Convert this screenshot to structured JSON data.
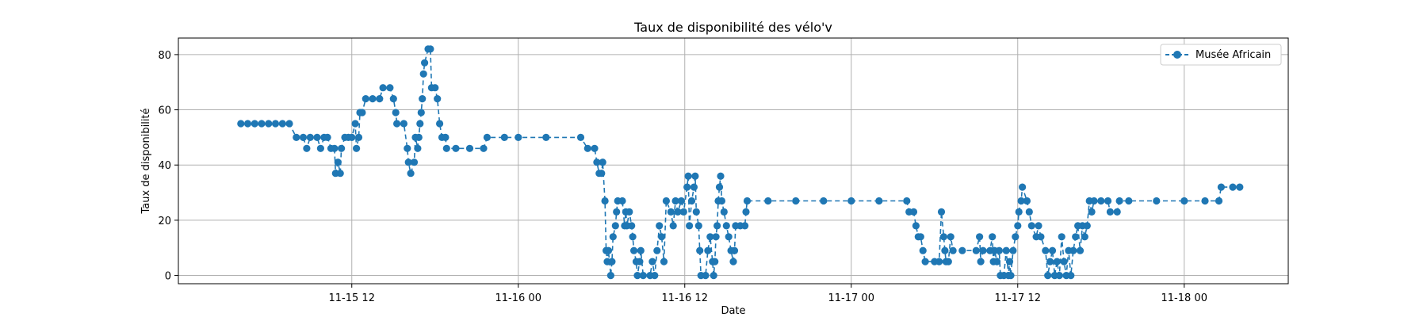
{
  "chart_data": {
    "type": "line",
    "title": "Taux de disponibilité des vélo'v",
    "xlabel": "Date",
    "ylabel": "Taux de disponibilité",
    "xlim": [
      "2018-11-14 23:30",
      "2018-11-18 07:30"
    ],
    "ylim": [
      -3,
      86
    ],
    "x_ticks": [
      "11-15 12",
      "11-16 00",
      "11-16 12",
      "11-17 00",
      "11-17 12",
      "11-18 00"
    ],
    "x_tick_positions": [
      "2018-11-15 12:00",
      "2018-11-16 00:00",
      "2018-11-16 12:00",
      "2018-11-17 00:00",
      "2018-11-17 12:00",
      "2018-11-18 00:00"
    ],
    "y_ticks": [
      0,
      20,
      40,
      60,
      80
    ],
    "grid": true,
    "legend": "top-right",
    "series": [
      {
        "name": "Musée Africain",
        "color": "#1f77b4",
        "marker": "circle",
        "linestyle": "dashed",
        "points": [
          [
            "2018-11-15 04:00",
            55
          ],
          [
            "2018-11-15 04:30",
            55
          ],
          [
            "2018-11-15 05:00",
            55
          ],
          [
            "2018-11-15 05:30",
            55
          ],
          [
            "2018-11-15 06:00",
            55
          ],
          [
            "2018-11-15 06:30",
            55
          ],
          [
            "2018-11-15 07:00",
            55
          ],
          [
            "2018-11-15 07:30",
            55
          ],
          [
            "2018-11-15 08:00",
            50
          ],
          [
            "2018-11-15 08:30",
            50
          ],
          [
            "2018-11-15 08:45",
            46
          ],
          [
            "2018-11-15 09:00",
            50
          ],
          [
            "2018-11-15 09:30",
            50
          ],
          [
            "2018-11-15 09:45",
            46
          ],
          [
            "2018-11-15 10:00",
            50
          ],
          [
            "2018-11-15 10:15",
            50
          ],
          [
            "2018-11-15 10:30",
            46
          ],
          [
            "2018-11-15 10:45",
            46
          ],
          [
            "2018-11-15 10:50",
            37
          ],
          [
            "2018-11-15 11:00",
            41
          ],
          [
            "2018-11-15 11:10",
            37
          ],
          [
            "2018-11-15 11:15",
            46
          ],
          [
            "2018-11-15 11:30",
            50
          ],
          [
            "2018-11-15 11:45",
            50
          ],
          [
            "2018-11-15 12:00",
            50
          ],
          [
            "2018-11-15 12:15",
            55
          ],
          [
            "2018-11-15 12:20",
            46
          ],
          [
            "2018-11-15 12:30",
            50
          ],
          [
            "2018-11-15 12:35",
            59
          ],
          [
            "2018-11-15 12:45",
            59
          ],
          [
            "2018-11-15 13:00",
            64
          ],
          [
            "2018-11-15 13:30",
            64
          ],
          [
            "2018-11-15 14:00",
            64
          ],
          [
            "2018-11-15 14:15",
            68
          ],
          [
            "2018-11-15 14:45",
            68
          ],
          [
            "2018-11-15 15:00",
            64
          ],
          [
            "2018-11-15 15:10",
            59
          ],
          [
            "2018-11-15 15:15",
            55
          ],
          [
            "2018-11-15 15:45",
            55
          ],
          [
            "2018-11-15 16:00",
            46
          ],
          [
            "2018-11-15 16:05",
            41
          ],
          [
            "2018-11-15 16:15",
            37
          ],
          [
            "2018-11-15 16:30",
            41
          ],
          [
            "2018-11-15 16:35",
            50
          ],
          [
            "2018-11-15 16:45",
            46
          ],
          [
            "2018-11-15 16:50",
            50
          ],
          [
            "2018-11-15 16:55",
            55
          ],
          [
            "2018-11-15 17:00",
            59
          ],
          [
            "2018-11-15 17:05",
            64
          ],
          [
            "2018-11-15 17:10",
            73
          ],
          [
            "2018-11-15 17:15",
            77
          ],
          [
            "2018-11-15 17:30",
            82
          ],
          [
            "2018-11-15 17:40",
            82
          ],
          [
            "2018-11-15 17:45",
            68
          ],
          [
            "2018-11-15 18:00",
            68
          ],
          [
            "2018-11-15 18:10",
            64
          ],
          [
            "2018-11-15 18:20",
            55
          ],
          [
            "2018-11-15 18:30",
            50
          ],
          [
            "2018-11-15 18:45",
            50
          ],
          [
            "2018-11-15 18:50",
            46
          ],
          [
            "2018-11-15 19:30",
            46
          ],
          [
            "2018-11-15 20:30",
            46
          ],
          [
            "2018-11-15 21:30",
            46
          ],
          [
            "2018-11-15 21:45",
            50
          ],
          [
            "2018-11-15 23:00",
            50
          ],
          [
            "2018-11-16 00:00",
            50
          ],
          [
            "2018-11-16 02:00",
            50
          ],
          [
            "2018-11-16 04:30",
            50
          ],
          [
            "2018-11-16 05:00",
            46
          ],
          [
            "2018-11-16 05:30",
            46
          ],
          [
            "2018-11-16 05:40",
            41
          ],
          [
            "2018-11-16 05:50",
            37
          ],
          [
            "2018-11-16 06:00",
            37
          ],
          [
            "2018-11-16 06:05",
            41
          ],
          [
            "2018-11-16 06:15",
            27
          ],
          [
            "2018-11-16 06:20",
            9
          ],
          [
            "2018-11-16 06:25",
            5
          ],
          [
            "2018-11-16 06:30",
            9
          ],
          [
            "2018-11-16 06:40",
            0
          ],
          [
            "2018-11-16 06:45",
            5
          ],
          [
            "2018-11-16 06:50",
            14
          ],
          [
            "2018-11-16 07:00",
            18
          ],
          [
            "2018-11-16 07:05",
            23
          ],
          [
            "2018-11-16 07:10",
            27
          ],
          [
            "2018-11-16 07:30",
            27
          ],
          [
            "2018-11-16 07:40",
            18
          ],
          [
            "2018-11-16 07:45",
            23
          ],
          [
            "2018-11-16 07:50",
            18
          ],
          [
            "2018-11-16 08:00",
            23
          ],
          [
            "2018-11-16 08:10",
            18
          ],
          [
            "2018-11-16 08:15",
            14
          ],
          [
            "2018-11-16 08:20",
            9
          ],
          [
            "2018-11-16 08:30",
            5
          ],
          [
            "2018-11-16 08:35",
            0
          ],
          [
            "2018-11-16 08:45",
            5
          ],
          [
            "2018-11-16 08:50",
            9
          ],
          [
            "2018-11-16 09:00",
            0
          ],
          [
            "2018-11-16 09:30",
            0
          ],
          [
            "2018-11-16 09:40",
            5
          ],
          [
            "2018-11-16 09:50",
            0
          ],
          [
            "2018-11-16 10:00",
            9
          ],
          [
            "2018-11-16 10:10",
            18
          ],
          [
            "2018-11-16 10:20",
            14
          ],
          [
            "2018-11-16 10:30",
            5
          ],
          [
            "2018-11-16 10:40",
            27
          ],
          [
            "2018-11-16 11:00",
            23
          ],
          [
            "2018-11-16 11:10",
            18
          ],
          [
            "2018-11-16 11:20",
            27
          ],
          [
            "2018-11-16 11:30",
            23
          ],
          [
            "2018-11-16 11:45",
            27
          ],
          [
            "2018-11-16 11:55",
            23
          ],
          [
            "2018-11-16 12:10",
            32
          ],
          [
            "2018-11-16 12:15",
            36
          ],
          [
            "2018-11-16 12:20",
            18
          ],
          [
            "2018-11-16 12:30",
            27
          ],
          [
            "2018-11-16 12:40",
            32
          ],
          [
            "2018-11-16 12:45",
            36
          ],
          [
            "2018-11-16 12:50",
            23
          ],
          [
            "2018-11-16 13:00",
            18
          ],
          [
            "2018-11-16 13:05",
            9
          ],
          [
            "2018-11-16 13:10",
            0
          ],
          [
            "2018-11-16 13:30",
            0
          ],
          [
            "2018-11-16 13:40",
            9
          ],
          [
            "2018-11-16 13:50",
            14
          ],
          [
            "2018-11-16 14:00",
            5
          ],
          [
            "2018-11-16 14:05",
            0
          ],
          [
            "2018-11-16 14:10",
            5
          ],
          [
            "2018-11-16 14:15",
            14
          ],
          [
            "2018-11-16 14:20",
            18
          ],
          [
            "2018-11-16 14:25",
            27
          ],
          [
            "2018-11-16 14:30",
            32
          ],
          [
            "2018-11-16 14:35",
            36
          ],
          [
            "2018-11-16 14:40",
            27
          ],
          [
            "2018-11-16 14:50",
            23
          ],
          [
            "2018-11-16 15:00",
            18
          ],
          [
            "2018-11-16 15:10",
            14
          ],
          [
            "2018-11-16 15:20",
            9
          ],
          [
            "2018-11-16 15:30",
            5
          ],
          [
            "2018-11-16 15:35",
            9
          ],
          [
            "2018-11-16 15:40",
            18
          ],
          [
            "2018-11-16 16:00",
            18
          ],
          [
            "2018-11-16 16:20",
            18
          ],
          [
            "2018-11-16 16:25",
            23
          ],
          [
            "2018-11-16 16:30",
            27
          ],
          [
            "2018-11-16 18:00",
            27
          ],
          [
            "2018-11-16 20:00",
            27
          ],
          [
            "2018-11-16 22:00",
            27
          ],
          [
            "2018-11-17 00:00",
            27
          ],
          [
            "2018-11-17 02:00",
            27
          ],
          [
            "2018-11-17 04:00",
            27
          ],
          [
            "2018-11-17 04:10",
            23
          ],
          [
            "2018-11-17 04:30",
            23
          ],
          [
            "2018-11-17 04:40",
            18
          ],
          [
            "2018-11-17 04:50",
            14
          ],
          [
            "2018-11-17 05:00",
            14
          ],
          [
            "2018-11-17 05:10",
            9
          ],
          [
            "2018-11-17 05:20",
            5
          ],
          [
            "2018-11-17 06:00",
            5
          ],
          [
            "2018-11-17 06:20",
            5
          ],
          [
            "2018-11-17 06:30",
            23
          ],
          [
            "2018-11-17 06:40",
            14
          ],
          [
            "2018-11-17 06:45",
            9
          ],
          [
            "2018-11-17 06:50",
            5
          ],
          [
            "2018-11-17 07:00",
            5
          ],
          [
            "2018-11-17 07:10",
            14
          ],
          [
            "2018-11-17 07:20",
            9
          ],
          [
            "2018-11-17 08:00",
            9
          ],
          [
            "2018-11-17 09:00",
            9
          ],
          [
            "2018-11-17 09:15",
            14
          ],
          [
            "2018-11-17 09:20",
            5
          ],
          [
            "2018-11-17 09:30",
            9
          ],
          [
            "2018-11-17 10:00",
            9
          ],
          [
            "2018-11-17 10:10",
            14
          ],
          [
            "2018-11-17 10:15",
            5
          ],
          [
            "2018-11-17 10:20",
            9
          ],
          [
            "2018-11-17 10:30",
            5
          ],
          [
            "2018-11-17 10:40",
            9
          ],
          [
            "2018-11-17 10:45",
            0
          ],
          [
            "2018-11-17 11:00",
            0
          ],
          [
            "2018-11-17 11:10",
            9
          ],
          [
            "2018-11-17 11:20",
            0
          ],
          [
            "2018-11-17 11:25",
            5
          ],
          [
            "2018-11-17 11:30",
            0
          ],
          [
            "2018-11-17 11:40",
            9
          ],
          [
            "2018-11-17 11:50",
            14
          ],
          [
            "2018-11-17 12:00",
            18
          ],
          [
            "2018-11-17 12:05",
            23
          ],
          [
            "2018-11-17 12:15",
            27
          ],
          [
            "2018-11-17 12:20",
            32
          ],
          [
            "2018-11-17 12:40",
            27
          ],
          [
            "2018-11-17 12:50",
            23
          ],
          [
            "2018-11-17 13:00",
            18
          ],
          [
            "2018-11-17 13:20",
            14
          ],
          [
            "2018-11-17 13:30",
            18
          ],
          [
            "2018-11-17 13:40",
            14
          ],
          [
            "2018-11-17 14:00",
            9
          ],
          [
            "2018-11-17 14:10",
            0
          ],
          [
            "2018-11-17 14:20",
            5
          ],
          [
            "2018-11-17 14:30",
            9
          ],
          [
            "2018-11-17 14:40",
            0
          ],
          [
            "2018-11-17 14:50",
            5
          ],
          [
            "2018-11-17 15:00",
            0
          ],
          [
            "2018-11-17 15:10",
            14
          ],
          [
            "2018-11-17 15:20",
            5
          ],
          [
            "2018-11-17 15:30",
            0
          ],
          [
            "2018-11-17 15:40",
            9
          ],
          [
            "2018-11-17 15:50",
            0
          ],
          [
            "2018-11-17 16:00",
            9
          ],
          [
            "2018-11-17 16:10",
            14
          ],
          [
            "2018-11-17 16:20",
            18
          ],
          [
            "2018-11-17 16:30",
            9
          ],
          [
            "2018-11-17 16:40",
            18
          ],
          [
            "2018-11-17 16:50",
            14
          ],
          [
            "2018-11-17 17:00",
            18
          ],
          [
            "2018-11-17 17:10",
            27
          ],
          [
            "2018-11-17 17:20",
            23
          ],
          [
            "2018-11-17 17:30",
            27
          ],
          [
            "2018-11-17 18:00",
            27
          ],
          [
            "2018-11-17 18:30",
            27
          ],
          [
            "2018-11-17 18:40",
            23
          ],
          [
            "2018-11-17 19:10",
            23
          ],
          [
            "2018-11-17 19:20",
            27
          ],
          [
            "2018-11-17 20:00",
            27
          ],
          [
            "2018-11-17 22:00",
            27
          ],
          [
            "2018-11-18 00:00",
            27
          ],
          [
            "2018-11-18 01:30",
            27
          ],
          [
            "2018-11-18 02:30",
            27
          ],
          [
            "2018-11-18 02:40",
            32
          ],
          [
            "2018-11-18 03:30",
            32
          ],
          [
            "2018-11-18 04:00",
            32
          ]
        ]
      }
    ]
  }
}
